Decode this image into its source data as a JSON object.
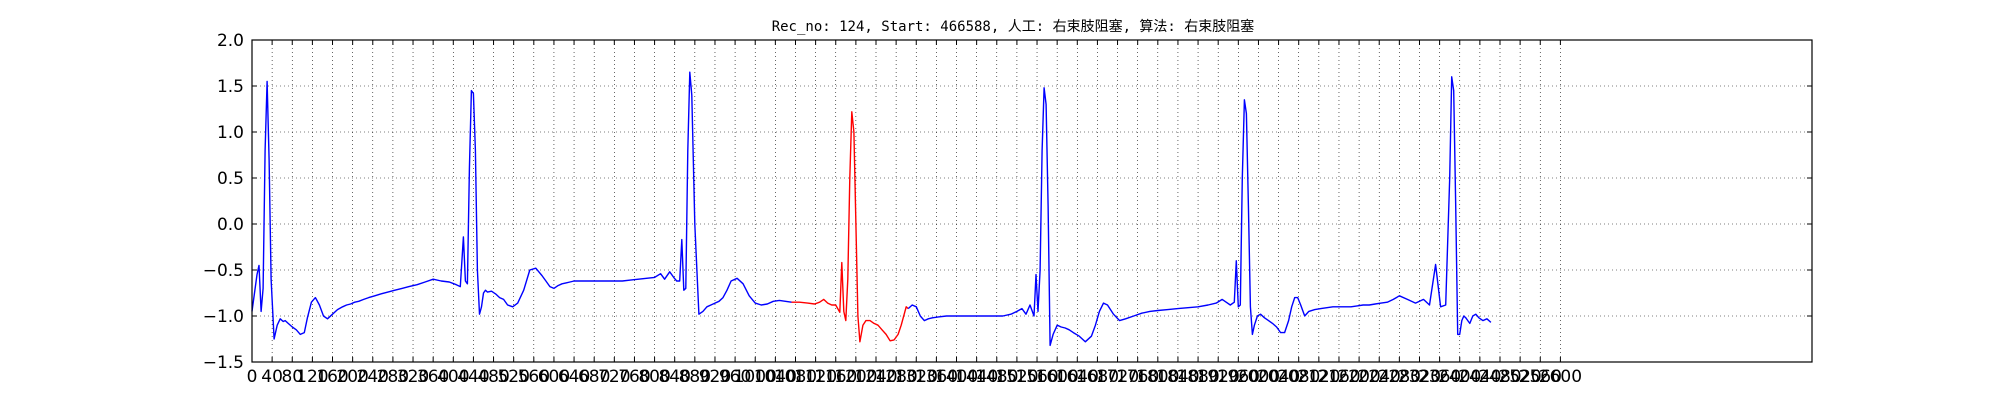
{
  "chart_data": {
    "type": "line",
    "title": "Rec_no: 124, Start: 466588, 人工: 右束肢阻塞, 算法: 右束肢阻塞",
    "xlabel": "",
    "ylabel": "",
    "xlim": [
      0,
      3100
    ],
    "ylim": [
      -1.5,
      2.0
    ],
    "grid": true,
    "y_ticks": [
      2.0,
      1.5,
      1.0,
      0.5,
      0.0,
      -0.5,
      -1.0,
      -1.5
    ],
    "y_tick_labels": [
      "2.0",
      "1.5",
      "1.0",
      "0.5",
      "0.0",
      "−0.5",
      "−1.0",
      "−1.5"
    ],
    "x_tick_labels": [
      "0",
      "40",
      "80",
      "120",
      "160",
      "200",
      "240",
      "280",
      "320",
      "360",
      "400",
      "440",
      "480",
      "520",
      "560",
      "600",
      "640",
      "680",
      "720",
      "760",
      "800",
      "840",
      "880",
      "920",
      "960",
      "1000",
      "1040",
      "1080",
      "1120",
      "1160",
      "1200",
      "1240",
      "1280",
      "1320",
      "1360",
      "1400",
      "1440",
      "1480",
      "1520",
      "1560",
      "1600",
      "1640",
      "1680",
      "1720",
      "1760",
      "1800",
      "1840",
      "1880",
      "1920",
      "1960",
      "2000",
      "2040",
      "2080",
      "2120",
      "2160",
      "2200",
      "2240",
      "2280",
      "2320",
      "2360",
      "2400",
      "2440",
      "2480",
      "2520",
      "2560",
      "2600"
    ],
    "x_tick_step": 40,
    "x_tick_max": 2600,
    "series": [
      {
        "color": "#0000ff",
        "x": [
          0,
          10,
          14,
          18,
          22,
          26,
          30,
          34,
          38,
          44,
          50,
          56,
          62,
          66,
          72,
          80,
          88,
          96,
          104,
          110,
          118,
          126,
          134,
          142,
          150,
          160,
          170,
          180,
          188,
          196,
          204,
          212,
          222,
          232,
          244,
          256,
          270,
          284,
          298,
          312,
          328,
          344,
          360,
          376,
          392,
          406,
          414,
          420,
          424,
          428,
          432,
          436,
          440,
          444,
          448,
          452,
          456,
          460,
          464,
          468,
          476,
          484,
          492,
          500,
          508,
          518,
          528,
          540,
          552,
          564,
          576,
          584,
          592,
          600,
          608,
          616,
          624,
          632,
          640,
          656,
          672,
          688,
          704,
          720,
          736,
          752,
          768,
          784,
          800,
          812,
          820,
          830,
          838,
          844,
          850,
          854,
          858,
          862,
          866,
          870,
          874,
          880,
          888,
          896,
          904,
          912,
          920,
          928,
          936,
          944,
          952,
          964,
          976,
          988,
          1000,
          1012,
          1024,
          1036,
          1048,
          1060,
          1072
        ],
        "y": [
          -0.95,
          -0.55,
          -0.45,
          -0.95,
          -0.7,
          0.8,
          1.55,
          0.7,
          -0.6,
          -1.25,
          -1.1,
          -1.03,
          -1.06,
          -1.05,
          -1.08,
          -1.12,
          -1.15,
          -1.2,
          -1.18,
          -1.02,
          -0.85,
          -0.8,
          -0.88,
          -1.0,
          -1.03,
          -0.98,
          -0.93,
          -0.9,
          -0.88,
          -0.87,
          -0.85,
          -0.84,
          -0.82,
          -0.8,
          -0.78,
          -0.76,
          -0.74,
          -0.72,
          -0.7,
          -0.68,
          -0.66,
          -0.63,
          -0.6,
          -0.62,
          -0.63,
          -0.66,
          -0.68,
          -0.14,
          -0.62,
          -0.65,
          0.6,
          1.45,
          1.42,
          0.8,
          -0.5,
          -0.98,
          -0.9,
          -0.75,
          -0.72,
          -0.74,
          -0.73,
          -0.76,
          -0.8,
          -0.82,
          -0.88,
          -0.9,
          -0.86,
          -0.72,
          -0.5,
          -0.48,
          -0.56,
          -0.62,
          -0.68,
          -0.7,
          -0.67,
          -0.65,
          -0.64,
          -0.63,
          -0.62,
          -0.62,
          -0.62,
          -0.62,
          -0.62,
          -0.62,
          -0.62,
          -0.61,
          -0.6,
          -0.59,
          -0.58,
          -0.54,
          -0.6,
          -0.52,
          -0.58,
          -0.62,
          -0.62,
          -0.17,
          -0.72,
          -0.7,
          0.8,
          1.65,
          1.4,
          0.0,
          -0.98,
          -0.95,
          -0.9,
          -0.88,
          -0.86,
          -0.84,
          -0.8,
          -0.72,
          -0.62,
          -0.59,
          -0.65,
          -0.78,
          -0.86,
          -0.88,
          -0.87,
          -0.84,
          -0.83,
          -0.84,
          -0.85
        ]
      },
      {
        "color": "#ff0000",
        "x": [
          1072,
          1088,
          1104,
          1118,
          1128,
          1136,
          1144,
          1152,
          1160,
          1168,
          1172,
          1176,
          1180,
          1184,
          1188,
          1192,
          1196,
          1200,
          1204,
          1208,
          1214,
          1220,
          1228,
          1236,
          1244,
          1252,
          1260,
          1268,
          1276,
          1284,
          1290,
          1296,
          1300,
          1304
        ],
        "y": [
          -0.85,
          -0.85,
          -0.86,
          -0.87,
          -0.85,
          -0.82,
          -0.86,
          -0.88,
          -0.88,
          -0.96,
          -0.42,
          -0.95,
          -1.05,
          -0.6,
          0.5,
          1.22,
          1.0,
          0.0,
          -1.0,
          -1.28,
          -1.1,
          -1.05,
          -1.05,
          -1.08,
          -1.1,
          -1.15,
          -1.2,
          -1.27,
          -1.26,
          -1.2,
          -1.1,
          -0.98,
          -0.9,
          -0.92
        ]
      },
      {
        "color": "#0000ff",
        "x": [
          1304,
          1312,
          1320,
          1328,
          1336,
          1344,
          1352,
          1364,
          1380,
          1396,
          1412,
          1428,
          1444,
          1460,
          1476,
          1492,
          1508,
          1520,
          1530,
          1538,
          1546,
          1554,
          1558,
          1562,
          1566,
          1570,
          1574,
          1578,
          1582,
          1586,
          1592,
          1600,
          1608,
          1616,
          1624,
          1632,
          1644,
          1656,
          1668,
          1676,
          1684,
          1692,
          1700,
          1712,
          1724,
          1736,
          1752,
          1768,
          1784,
          1800,
          1820,
          1840,
          1860,
          1880,
          1900,
          1916,
          1928,
          1936,
          1944,
          1952,
          1956,
          1960,
          1964,
          1968,
          1972,
          1976,
          1980,
          1984,
          1988,
          1992,
          1998,
          2004,
          2012,
          2020,
          2028,
          2036,
          2044,
          2052,
          2060,
          2066,
          2072,
          2078,
          2084,
          2092,
          2100,
          2112,
          2124,
          2136,
          2148,
          2160,
          2172,
          2184,
          2196,
          2208,
          2220,
          2232,
          2244,
          2256,
          2268,
          2280,
          2296,
          2312,
          2328,
          2340,
          2352,
          2362,
          2372,
          2380,
          2384,
          2388,
          2392,
          2396,
          2400,
          2404,
          2408,
          2412,
          2416,
          2420,
          2426,
          2432,
          2438,
          2446,
          2454,
          2462
        ],
        "y": [
          -0.92,
          -0.88,
          -0.9,
          -1.0,
          -1.05,
          -1.03,
          -1.02,
          -1.01,
          -1.0,
          -1.0,
          -1.0,
          -1.0,
          -1.0,
          -1.0,
          -1.0,
          -1.0,
          -0.98,
          -0.95,
          -0.92,
          -0.98,
          -0.88,
          -1.0,
          -0.55,
          -0.95,
          -0.5,
          0.8,
          1.48,
          1.3,
          0.2,
          -1.32,
          -1.2,
          -1.1,
          -1.12,
          -1.13,
          -1.15,
          -1.18,
          -1.22,
          -1.28,
          -1.22,
          -1.1,
          -0.95,
          -0.86,
          -0.88,
          -0.98,
          -1.05,
          -1.03,
          -1.0,
          -0.97,
          -0.95,
          -0.94,
          -0.93,
          -0.92,
          -0.91,
          -0.9,
          -0.88,
          -0.86,
          -0.82,
          -0.85,
          -0.88,
          -0.85,
          -0.4,
          -0.9,
          -0.88,
          0.5,
          1.35,
          1.2,
          0.2,
          -0.9,
          -1.2,
          -1.1,
          -1.0,
          -0.98,
          -1.02,
          -1.05,
          -1.08,
          -1.12,
          -1.18,
          -1.18,
          -1.05,
          -0.9,
          -0.8,
          -0.8,
          -0.88,
          -1.0,
          -0.95,
          -0.93,
          -0.92,
          -0.91,
          -0.9,
          -0.9,
          -0.9,
          -0.9,
          -0.89,
          -0.88,
          -0.88,
          -0.87,
          -0.86,
          -0.85,
          -0.82,
          -0.78,
          -0.82,
          -0.86,
          -0.82,
          -0.88,
          -0.44,
          -0.9,
          -0.88,
          0.5,
          1.6,
          1.45,
          0.2,
          -1.2,
          -1.2,
          -1.05,
          -1.0,
          -1.02,
          -1.05,
          -1.08,
          -1.0,
          -0.98,
          -1.02,
          -1.05,
          -1.03,
          -1.07
        ]
      }
    ]
  }
}
